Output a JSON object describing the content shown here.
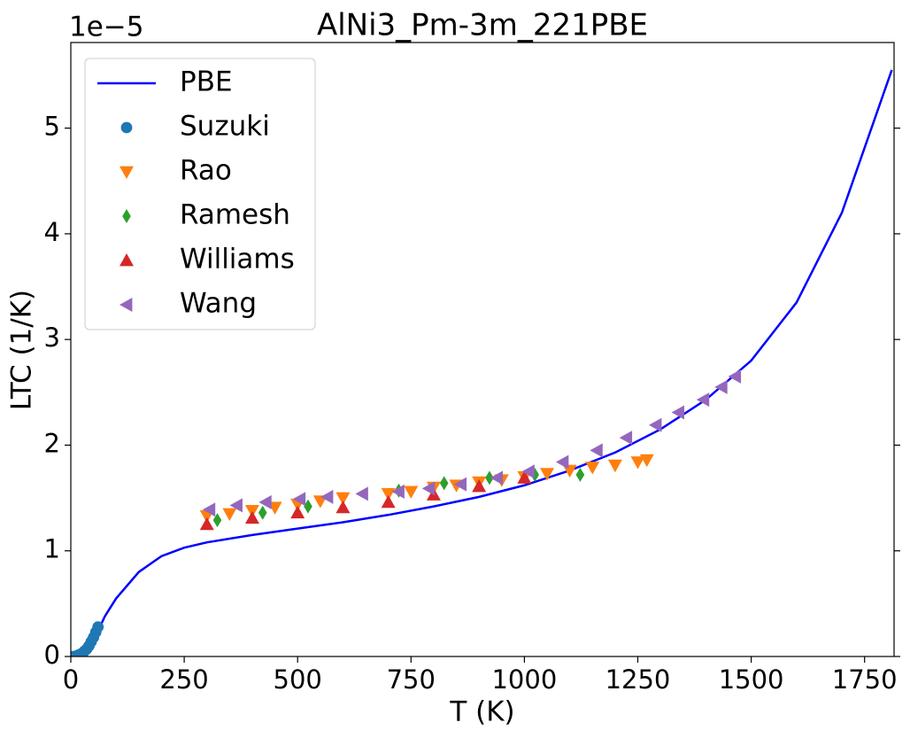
{
  "chart_data": {
    "type": "line_scatter",
    "title": "AlNi3_Pm-3m_221PBE",
    "offset_text": "1e−5",
    "x_label": "T (K)",
    "y_label": "LTC (1/K)",
    "xlim": [
      0,
      1815
    ],
    "ylim": [
      0,
      5.81
    ],
    "xticks": [
      0,
      250,
      500,
      750,
      1000,
      1250,
      1500,
      1750
    ],
    "yticks": [
      0,
      1,
      2,
      3,
      4,
      5
    ],
    "legend": "upper-left",
    "series": [
      {
        "name": "PBE",
        "color": "#0000ff",
        "marker": "line",
        "x": [
          0,
          25,
          50,
          75,
          100,
          150,
          200,
          250,
          300,
          400,
          500,
          600,
          700,
          800,
          900,
          1000,
          1100,
          1200,
          1300,
          1400,
          1500,
          1600,
          1700,
          1810
        ],
        "values": [
          0,
          0.02,
          0.15,
          0.38,
          0.55,
          0.8,
          0.95,
          1.03,
          1.08,
          1.15,
          1.21,
          1.27,
          1.34,
          1.42,
          1.51,
          1.62,
          1.76,
          1.93,
          2.15,
          2.43,
          2.8,
          3.35,
          4.2,
          5.55
        ]
      },
      {
        "name": "Suzuki",
        "color": "#1f77b4",
        "marker": "o",
        "x": [
          5,
          10,
          15,
          20,
          25,
          30,
          35,
          40,
          45,
          50,
          55,
          60
        ],
        "values": [
          0,
          0,
          0.01,
          0.02,
          0.03,
          0.05,
          0.07,
          0.1,
          0.14,
          0.18,
          0.23,
          0.28
        ]
      },
      {
        "name": "Rao",
        "color": "#ff7f0e",
        "marker": "v",
        "x": [
          300,
          350,
          400,
          450,
          500,
          550,
          600,
          700,
          750,
          800,
          850,
          900,
          950,
          1000,
          1050,
          1100,
          1150,
          1200,
          1250,
          1270
        ],
        "values": [
          1.33,
          1.35,
          1.38,
          1.41,
          1.44,
          1.47,
          1.5,
          1.54,
          1.56,
          1.6,
          1.62,
          1.65,
          1.67,
          1.7,
          1.73,
          1.76,
          1.79,
          1.81,
          1.84,
          1.86
        ]
      },
      {
        "name": "Ramesh",
        "color": "#2ca02c",
        "marker": "d",
        "x": [
          323,
          423,
          523,
          723,
          823,
          923,
          1023,
          1123
        ],
        "values": [
          1.29,
          1.36,
          1.42,
          1.57,
          1.64,
          1.69,
          1.72,
          1.72
        ]
      },
      {
        "name": "Williams",
        "color": "#d62728",
        "marker": "^",
        "x": [
          300,
          400,
          500,
          600,
          700,
          800,
          900,
          1000
        ],
        "values": [
          1.25,
          1.31,
          1.36,
          1.41,
          1.46,
          1.53,
          1.61,
          1.69
        ]
      },
      {
        "name": "Wang",
        "color": "#9467bd",
        "marker": "<",
        "x": [
          306,
          366,
          430,
          505,
          566,
          643,
          723,
          790,
          860,
          940,
          1010,
          1085,
          1160,
          1225,
          1290,
          1340,
          1395,
          1435,
          1465
        ],
        "values": [
          1.39,
          1.43,
          1.46,
          1.49,
          1.51,
          1.54,
          1.56,
          1.59,
          1.63,
          1.69,
          1.75,
          1.84,
          1.95,
          2.07,
          2.19,
          2.31,
          2.43,
          2.55,
          2.65
        ]
      }
    ]
  }
}
